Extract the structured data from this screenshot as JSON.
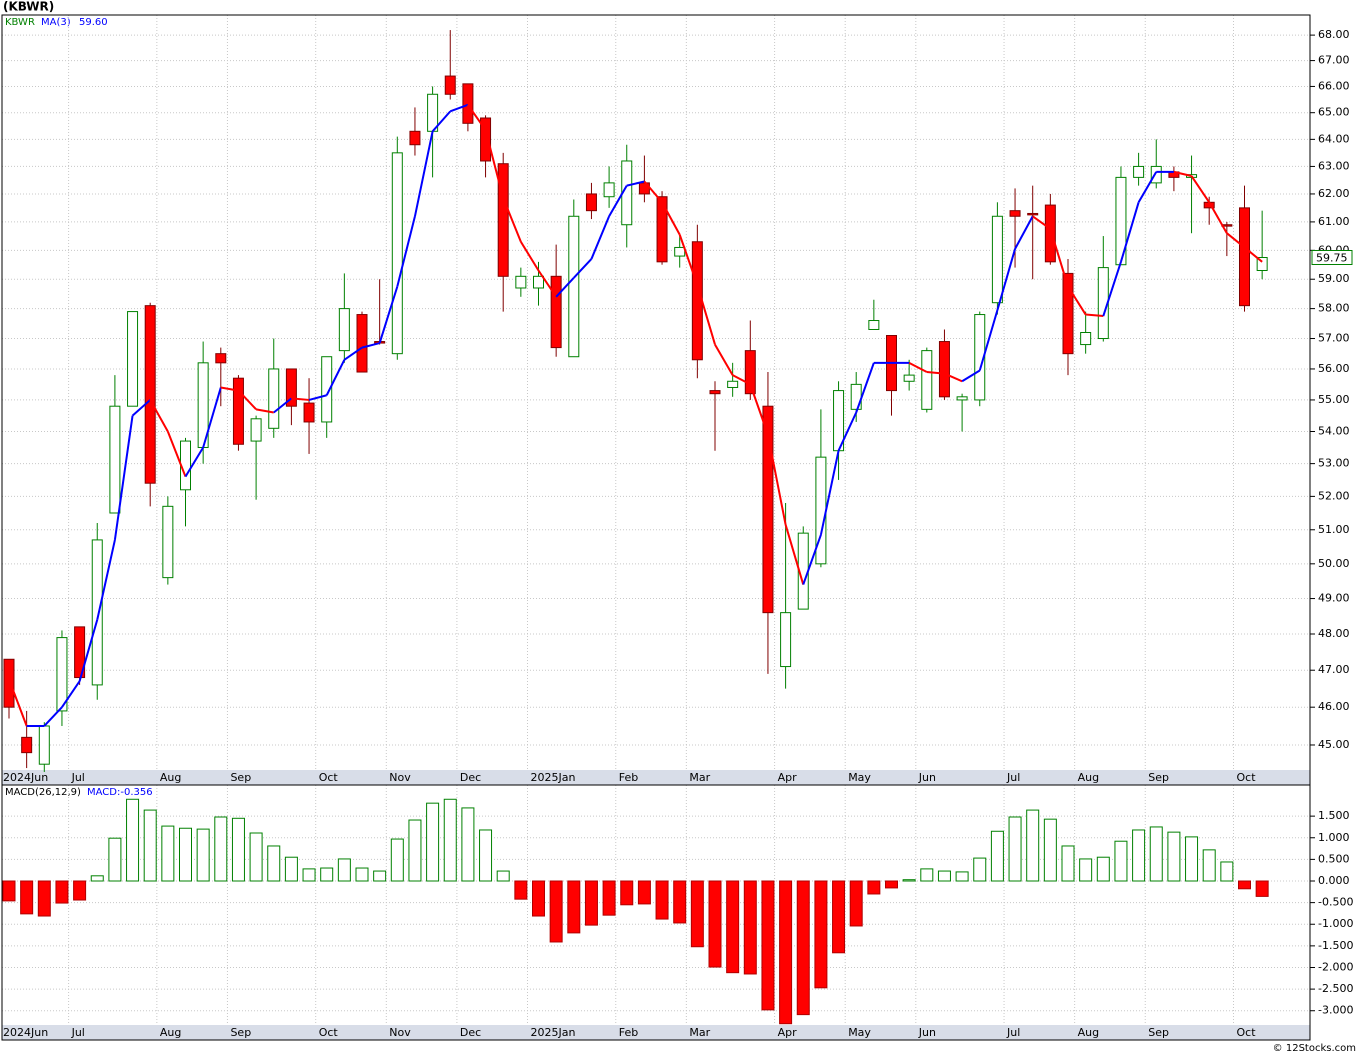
{
  "chart_data": [
    {
      "type": "candlestick",
      "title": "(KBWR)",
      "symbol": "KBWR",
      "categories": [
        "2024Jun",
        null,
        null,
        null,
        "Jul",
        null,
        null,
        null,
        null,
        "Aug",
        null,
        null,
        null,
        "Sep",
        null,
        null,
        null,
        null,
        "Oct",
        null,
        null,
        null,
        "Nov",
        null,
        null,
        null,
        "Dec",
        null,
        null,
        null,
        "2025Jan",
        null,
        null,
        null,
        null,
        "Feb",
        null,
        null,
        null,
        "Mar",
        null,
        null,
        null,
        null,
        "Apr",
        null,
        null,
        null,
        "May",
        null,
        null,
        null,
        "Jun",
        null,
        null,
        null,
        null,
        "Jul",
        null,
        null,
        null,
        "Aug",
        null,
        null,
        null,
        "Sep",
        null,
        null,
        null,
        null,
        "Oct",
        null
      ],
      "open": [
        47.3,
        45.2,
        44.5,
        45.9,
        48.2,
        46.6,
        51.5,
        54.8,
        58.1,
        49.6,
        52.2,
        53.5,
        56.5,
        55.7,
        53.7,
        54.1,
        56.0,
        54.9,
        54.3,
        56.6,
        57.8,
        56.9,
        56.5,
        64.3,
        64.3,
        66.4,
        66.1,
        64.8,
        63.1,
        58.7,
        58.7,
        59.1,
        56.4,
        62.0,
        61.9,
        60.9,
        62.4,
        61.9,
        59.8,
        60.3,
        55.3,
        55.4,
        56.6,
        54.8,
        47.1,
        48.7,
        50.0,
        53.4,
        54.7,
        57.3,
        57.1,
        55.6,
        54.7,
        56.9,
        55.0,
        55.0,
        58.2,
        61.4,
        61.3,
        61.6,
        59.2,
        56.8,
        57.0,
        59.5,
        62.6,
        62.4,
        62.8,
        62.6,
        61.7,
        60.9,
        61.5,
        59.3
      ],
      "high": [
        47.3,
        45.9,
        45.6,
        48.1,
        48.2,
        51.2,
        55.8,
        57.9,
        58.2,
        52.0,
        53.8,
        56.9,
        56.7,
        55.8,
        54.5,
        57.0,
        56.0,
        55.7,
        56.4,
        59.2,
        57.9,
        59.0,
        64.1,
        65.2,
        66.0,
        68.2,
        66.1,
        64.9,
        63.5,
        59.4,
        59.6,
        60.2,
        61.8,
        62.4,
        63.0,
        63.8,
        63.4,
        62.1,
        60.5,
        60.9,
        55.6,
        56.2,
        57.6,
        55.9,
        51.8,
        51.1,
        54.7,
        55.6,
        55.9,
        58.3,
        57.1,
        56.3,
        56.7,
        57.3,
        55.2,
        57.9,
        61.7,
        62.2,
        62.3,
        62.0,
        59.7,
        57.9,
        60.5,
        63.0,
        63.5,
        64.0,
        63.0,
        63.4,
        61.9,
        61.0,
        62.3,
        61.4
      ],
      "low": [
        45.7,
        44.4,
        44.3,
        45.5,
        46.6,
        46.2,
        51.5,
        54.8,
        51.7,
        49.4,
        51.1,
        53.0,
        54.8,
        53.4,
        51.9,
        53.8,
        54.2,
        53.3,
        53.8,
        56.2,
        55.9,
        56.8,
        56.3,
        63.4,
        62.6,
        65.5,
        64.3,
        62.6,
        57.9,
        58.4,
        58.1,
        56.4,
        56.4,
        61.1,
        61.5,
        60.1,
        61.7,
        59.5,
        59.4,
        55.7,
        53.4,
        55.1,
        55.0,
        46.9,
        46.5,
        48.7,
        49.9,
        52.5,
        54.3,
        57.3,
        54.5,
        55.3,
        54.6,
        55.0,
        54.0,
        54.8,
        57.8,
        59.4,
        59.0,
        59.5,
        55.8,
        56.5,
        56.9,
        59.5,
        62.3,
        62.2,
        62.1,
        60.6,
        60.9,
        59.8,
        57.9,
        59.0
      ],
      "close": [
        46.0,
        44.8,
        45.5,
        47.9,
        46.8,
        50.7,
        54.8,
        57.9,
        52.4,
        51.7,
        53.7,
        56.2,
        56.2,
        53.6,
        54.4,
        56.0,
        54.8,
        54.3,
        56.4,
        58.0,
        55.9,
        56.85,
        63.5,
        63.8,
        65.7,
        65.7,
        64.6,
        63.2,
        59.1,
        59.1,
        59.1,
        56.7,
        61.2,
        61.4,
        62.4,
        63.2,
        62.0,
        59.6,
        60.1,
        56.3,
        55.2,
        55.6,
        55.2,
        48.6,
        48.6,
        50.9,
        53.2,
        55.3,
        55.5,
        57.6,
        55.3,
        55.8,
        56.6,
        55.1,
        55.1,
        57.8,
        61.2,
        61.2,
        61.25,
        59.6,
        56.5,
        57.2,
        59.4,
        62.6,
        63.0,
        63.0,
        62.6,
        62.7,
        61.5,
        60.85,
        58.1,
        59.75
      ],
      "up_color": "#008000",
      "down_color": "#ff0000",
      "log_scale": true,
      "grid": true,
      "ylim": [
        44.35,
        68.8
      ],
      "yticks": [
        {
          "value": 45,
          "label": "45.00"
        },
        {
          "value": 46,
          "label": "46.00"
        },
        {
          "value": 47,
          "label": "47.00"
        },
        {
          "value": 48,
          "label": "48.00"
        },
        {
          "value": 49,
          "label": "49.00"
        },
        {
          "value": 50,
          "label": "50.00"
        },
        {
          "value": 51,
          "label": "51.00"
        },
        {
          "value": 52,
          "label": "52.00"
        },
        {
          "value": 53,
          "label": "53.00"
        },
        {
          "value": 54,
          "label": "54.00"
        },
        {
          "value": 55,
          "label": "55.00"
        },
        {
          "value": 56,
          "label": "56.00"
        },
        {
          "value": 57,
          "label": "57.00"
        },
        {
          "value": 58,
          "label": "58.00"
        },
        {
          "value": 59,
          "label": "59.00"
        },
        {
          "value": 60,
          "label": "60.00"
        },
        {
          "value": 61,
          "label": "61.00"
        },
        {
          "value": 62,
          "label": "62.00"
        },
        {
          "value": 63,
          "label": "63.00"
        },
        {
          "value": 64,
          "label": "64.00"
        },
        {
          "value": 65,
          "label": "65.00"
        },
        {
          "value": 66,
          "label": "66.00"
        },
        {
          "value": 67,
          "label": "67.00"
        },
        {
          "value": 68,
          "label": "68.00"
        }
      ],
      "overlay": {
        "name": "MA(3)",
        "up_color": "#0000ff",
        "down_color": "#ff0000",
        "last_label": "59.60",
        "values": [
          46.75,
          45.5,
          45.5,
          46.0,
          46.7,
          48.4,
          50.7,
          54.5,
          55.0,
          54.0,
          52.6,
          53.5,
          55.4,
          55.3,
          54.7,
          54.6,
          55.05,
          55.0,
          55.15,
          56.3,
          56.7,
          56.85,
          58.75,
          61.2,
          64.3,
          65.05,
          65.3,
          64.35,
          61.85,
          60.3,
          59.3,
          58.4,
          59.05,
          59.7,
          61.2,
          62.3,
          62.45,
          61.7,
          60.55,
          58.8,
          56.8,
          55.8,
          55.5,
          53.9,
          51.15,
          49.4,
          50.85,
          53.4,
          54.6,
          56.2,
          56.2,
          56.2,
          55.9,
          55.85,
          55.6,
          55.95,
          57.95,
          60.05,
          61.2,
          60.75,
          58.75,
          57.8,
          57.75,
          59.6,
          61.7,
          62.8,
          62.8,
          62.65,
          61.7,
          60.6,
          60.1,
          59.6
        ]
      },
      "last_price_label": "59.75"
    },
    {
      "type": "bar",
      "title": "MACD(26,12,9)",
      "value_label": "MACD:-0.356",
      "values": [
        -0.46,
        -0.76,
        -0.81,
        -0.51,
        -0.44,
        0.12,
        0.99,
        1.89,
        1.64,
        1.27,
        1.22,
        1.2,
        1.48,
        1.45,
        1.11,
        0.81,
        0.55,
        0.28,
        0.3,
        0.51,
        0.3,
        0.23,
        0.97,
        1.41,
        1.8,
        1.89,
        1.69,
        1.18,
        0.23,
        -0.42,
        -0.81,
        -1.41,
        -1.2,
        -1.02,
        -0.79,
        -0.55,
        -0.53,
        -0.88,
        -0.97,
        -1.52,
        -1.99,
        -2.12,
        -2.15,
        -2.98,
        -3.3,
        -3.09,
        -2.47,
        -1.66,
        -1.04,
        -0.3,
        -0.16,
        0.03,
        0.28,
        0.23,
        0.21,
        0.53,
        1.15,
        1.48,
        1.64,
        1.43,
        0.81,
        0.51,
        0.55,
        0.92,
        1.18,
        1.25,
        1.13,
        1.02,
        0.72,
        0.44,
        -0.18,
        -0.356
      ],
      "up_color": "#008000",
      "down_color": "#ff0000",
      "grid": true,
      "ylim": [
        -3.33,
        2.22
      ],
      "yticks": [
        {
          "value": 1.5,
          "label": "1.500"
        },
        {
          "value": 1,
          "label": "1.000"
        },
        {
          "value": 0.5,
          "label": "0.500"
        },
        {
          "value": 0,
          "label": "0.000"
        },
        {
          "value": -0.5,
          "label": "-0.500"
        },
        {
          "value": -1,
          "label": "-1.000"
        },
        {
          "value": -1.5,
          "label": "-1.500"
        },
        {
          "value": -2,
          "label": "-2.000"
        },
        {
          "value": -2.5,
          "label": "-2.500"
        },
        {
          "value": -3,
          "label": "-3.000"
        }
      ]
    }
  ],
  "credit": "© 12Stocks.com"
}
